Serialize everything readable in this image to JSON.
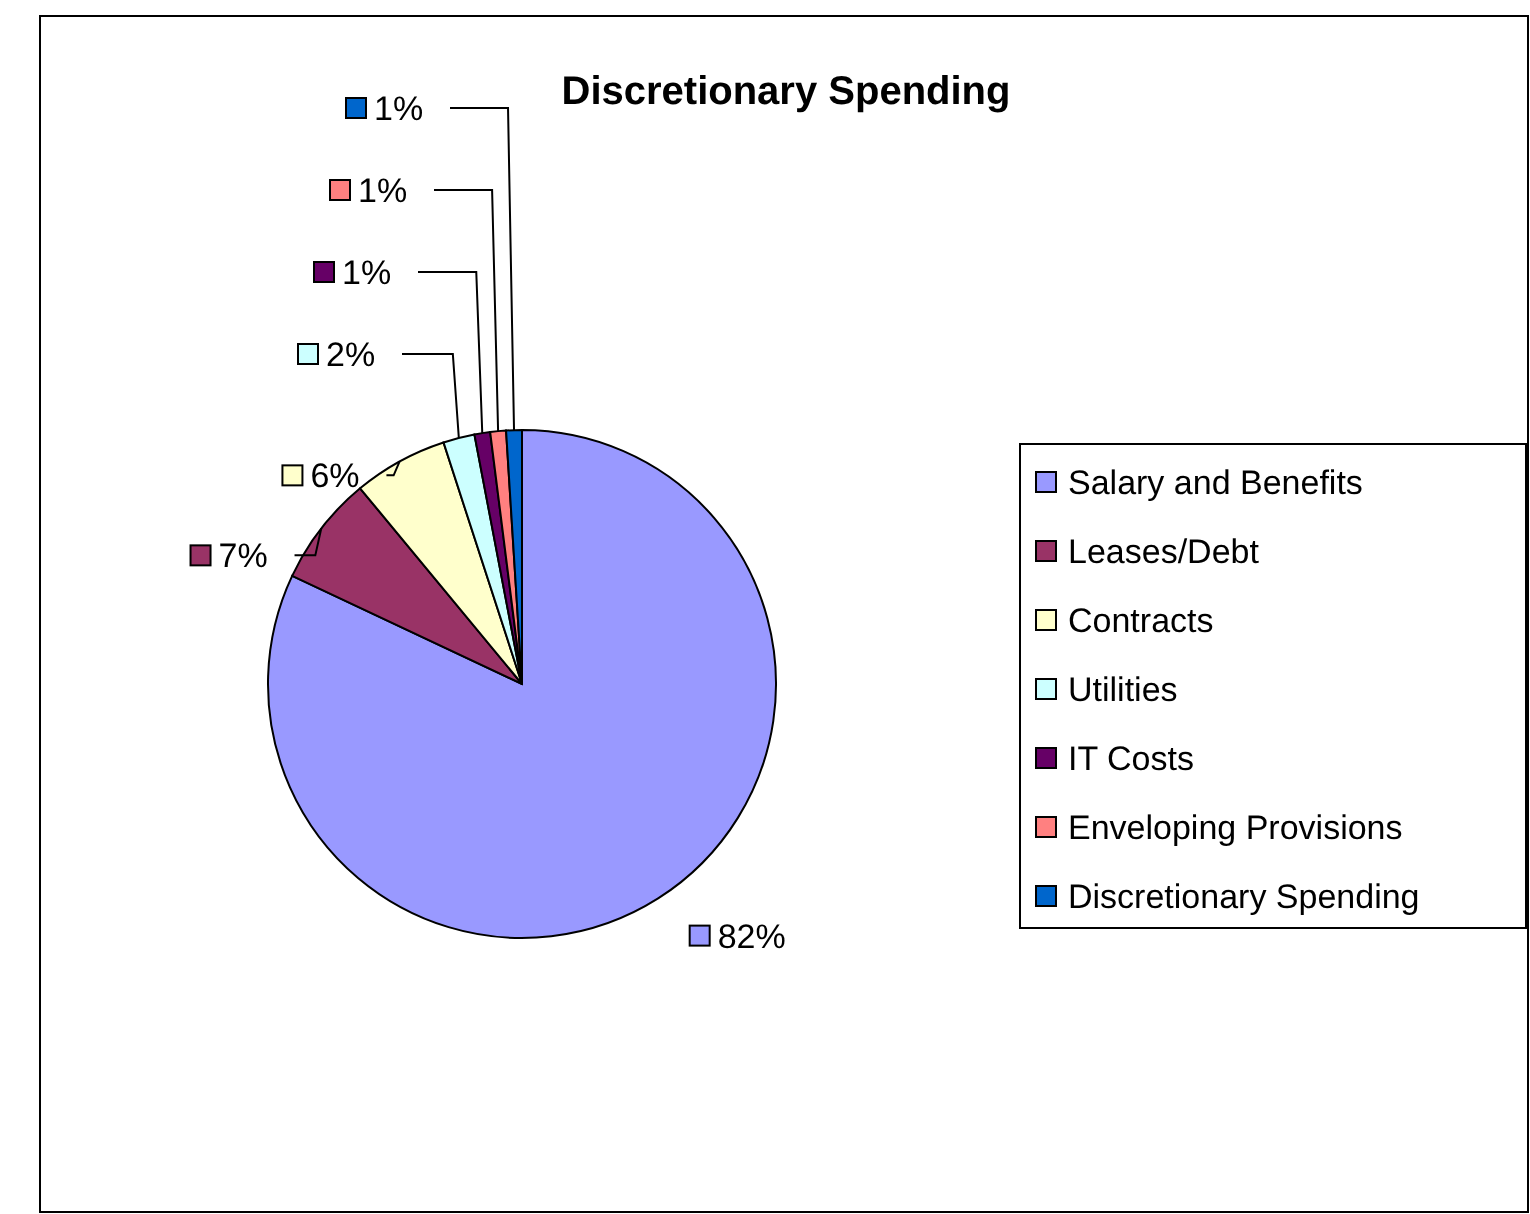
{
  "chart_data": {
    "type": "pie",
    "title": "Discretionary Spending",
    "categories": [
      "Salary and Benefits",
      "Leases/Debt",
      "Contracts",
      "Utilities",
      "IT Costs",
      "Enveloping Provisions",
      "Discretionary Spending"
    ],
    "values": [
      82,
      7,
      6,
      2,
      1,
      1,
      1
    ],
    "value_labels": [
      "82%",
      "7%",
      "6%",
      "2%",
      "1%",
      "1%",
      "1%"
    ],
    "colors": [
      "#9999ff",
      "#993366",
      "#ffffcc",
      "#ccffff",
      "#660066",
      "#ff8080",
      "#0066cc"
    ],
    "legend": "right"
  }
}
